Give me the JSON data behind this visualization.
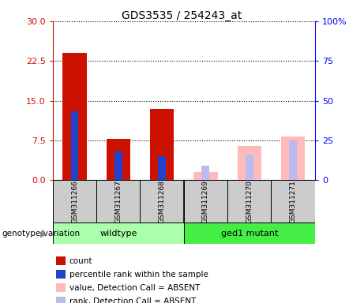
{
  "title": "GDS3535 / 254243_at",
  "samples": [
    "GSM311266",
    "GSM311267",
    "GSM311268",
    "GSM311269",
    "GSM311270",
    "GSM311271"
  ],
  "count_values": [
    24.0,
    7.8,
    13.5,
    null,
    null,
    null
  ],
  "rank_values": [
    13.0,
    5.5,
    4.5,
    null,
    null,
    null
  ],
  "value_absent": [
    null,
    null,
    null,
    1.5,
    6.5,
    8.2
  ],
  "rank_absent": [
    null,
    null,
    null,
    2.8,
    4.8,
    7.5
  ],
  "ylim_left": [
    0,
    30
  ],
  "ylim_right": [
    0,
    100
  ],
  "yticks_left": [
    0,
    7.5,
    15,
    22.5,
    30
  ],
  "yticks_right": [
    0,
    25,
    50,
    75,
    100
  ],
  "yticklabels_right": [
    "0",
    "25",
    "50",
    "75",
    "100%"
  ],
  "color_count": "#cc1100",
  "color_rank": "#2244cc",
  "color_value_absent": "#ffbbbb",
  "color_rank_absent": "#bbbbee",
  "color_wildtype": "#aaffaa",
  "color_ged1": "#44ee44",
  "legend_items": [
    {
      "label": "count",
      "color": "#cc1100"
    },
    {
      "label": "percentile rank within the sample",
      "color": "#2244cc"
    },
    {
      "label": "value, Detection Call = ABSENT",
      "color": "#ffbbbb"
    },
    {
      "label": "rank, Detection Call = ABSENT",
      "color": "#bbbbee"
    }
  ],
  "count_bar_width": 0.55,
  "rank_bar_width": 0.18
}
